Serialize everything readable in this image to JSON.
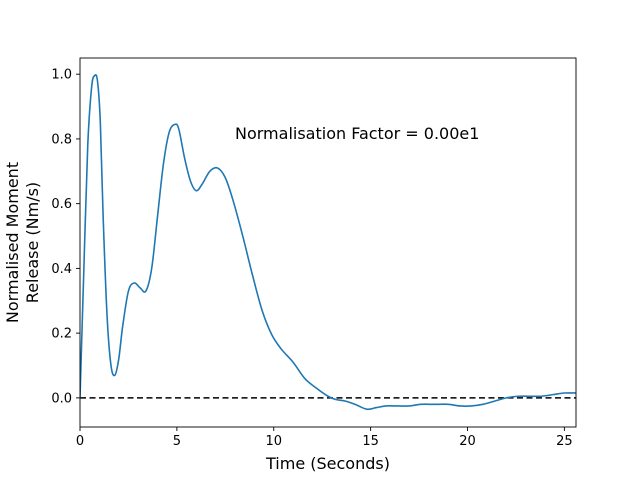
{
  "chart_data": {
    "type": "line",
    "xlabel": "Time (Seconds)",
    "ylabel_lines": [
      "Normalised Moment",
      "Release (Nm/s)"
    ],
    "annotation": "Normalisation Factor = 0.00e1",
    "xlim": [
      0,
      25.6
    ],
    "ylim": [
      -0.09,
      1.05
    ],
    "xticks": [
      0,
      5,
      10,
      15,
      20,
      25
    ],
    "xtick_labels": [
      "0",
      "5",
      "10",
      "15",
      "20",
      "25"
    ],
    "yticks": [
      0.0,
      0.2,
      0.4,
      0.6,
      0.8,
      1.0
    ],
    "ytick_labels": [
      "0.0",
      "0.2",
      "0.4",
      "0.6",
      "0.8",
      "1.0"
    ],
    "grid": false,
    "series": [
      {
        "color": "#1f77b4",
        "x": [
          0,
          0.2,
          0.4,
          0.6,
          0.75,
          0.9,
          1.05,
          1.2,
          1.4,
          1.6,
          1.8,
          2.0,
          2.2,
          2.5,
          2.8,
          3.1,
          3.4,
          3.7,
          4.0,
          4.3,
          4.6,
          4.9,
          5.1,
          5.4,
          5.7,
          6.0,
          6.3,
          6.7,
          7.1,
          7.5,
          7.9,
          8.4,
          8.9,
          9.4,
          9.9,
          10.4,
          11.0,
          11.6,
          12.2,
          12.8,
          13.2,
          13.7,
          14.2,
          14.8,
          15.3,
          15.8,
          16.4,
          17.0,
          17.6,
          18.3,
          19.0,
          19.6,
          20.2,
          20.8,
          21.4,
          22.0,
          22.6,
          23.2,
          23.8,
          24.4,
          25.0,
          25.6
        ],
        "y": [
          0.0,
          0.4,
          0.78,
          0.96,
          0.995,
          0.98,
          0.85,
          0.55,
          0.25,
          0.1,
          0.07,
          0.12,
          0.22,
          0.33,
          0.355,
          0.34,
          0.33,
          0.4,
          0.56,
          0.72,
          0.82,
          0.845,
          0.83,
          0.74,
          0.67,
          0.64,
          0.66,
          0.7,
          0.71,
          0.68,
          0.61,
          0.5,
          0.38,
          0.27,
          0.195,
          0.15,
          0.11,
          0.06,
          0.03,
          0.005,
          -0.005,
          -0.01,
          -0.02,
          -0.035,
          -0.03,
          -0.025,
          -0.025,
          -0.025,
          -0.02,
          -0.02,
          -0.02,
          -0.025,
          -0.025,
          -0.02,
          -0.01,
          0.0,
          0.005,
          0.005,
          0.005,
          0.01,
          0.015,
          0.015
        ]
      }
    ],
    "reference_line": {
      "y": 0.0,
      "style": "dashed",
      "color": "#000000"
    }
  }
}
